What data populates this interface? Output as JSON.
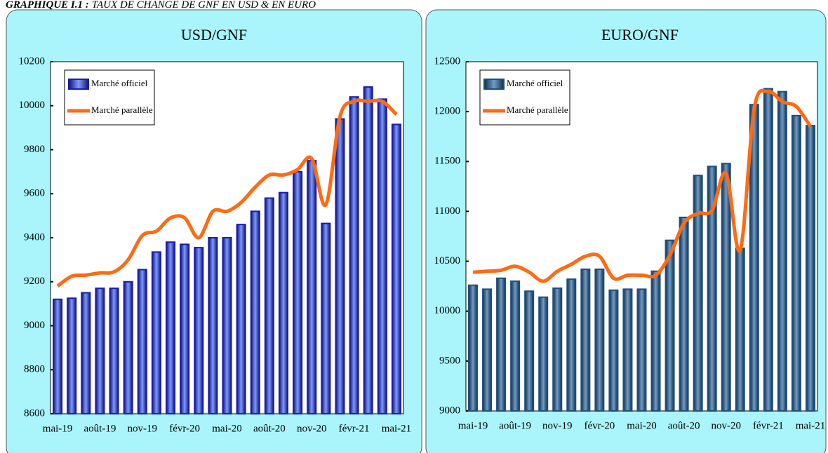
{
  "header": {
    "label": "GRAPHIQUE I.1 :",
    "title": "TAUX DE CHANGE DE GNF EN USD & EN EURO"
  },
  "chart_data": [
    {
      "type": "bar",
      "title": "USD/GNF",
      "categories": [
        "mai-19",
        null,
        null,
        "août-19",
        null,
        null,
        "nov-19",
        null,
        null,
        "févr-20",
        null,
        null,
        "mai-20",
        null,
        null,
        "août-20",
        null,
        null,
        "nov-20",
        null,
        null,
        "févr-21",
        null,
        null,
        "mai-21"
      ],
      "series": [
        {
          "name": "Marché officiel",
          "type": "bar",
          "color": "#1c1ca8",
          "values": [
            9120,
            9125,
            9150,
            9170,
            9170,
            9200,
            9255,
            9335,
            9380,
            9370,
            9355,
            9400,
            9400,
            9460,
            9520,
            9580,
            9605,
            9700,
            9750,
            9465,
            9940,
            10040,
            10085,
            10030,
            9915
          ]
        },
        {
          "name": "Marché parallèle",
          "type": "line",
          "color": "#ff6a13",
          "values": [
            9180,
            9225,
            9230,
            9240,
            9245,
            9300,
            9410,
            9430,
            9490,
            9490,
            9400,
            9520,
            9520,
            9560,
            9630,
            9685,
            9685,
            9710,
            9760,
            9550,
            9950,
            10020,
            10020,
            10020,
            9960
          ]
        }
      ],
      "ylim": [
        8600,
        10200
      ],
      "yticks": [
        8600,
        8800,
        9000,
        9200,
        9400,
        9600,
        9800,
        10000,
        10200
      ],
      "legend": "upper left"
    },
    {
      "type": "bar",
      "title": "EURO/GNF",
      "categories": [
        "mai-19",
        null,
        null,
        "août-19",
        null,
        null,
        "nov-19",
        null,
        null,
        "févr-20",
        null,
        null,
        "mai-20",
        null,
        null,
        "août-20",
        null,
        null,
        "nov-20",
        null,
        null,
        "févr-21",
        null,
        null,
        "mai-21"
      ],
      "series": [
        {
          "name": "Marché officiel",
          "type": "bar",
          "color": "#1f4e79",
          "values": [
            10260,
            10220,
            10330,
            10300,
            10200,
            10140,
            10230,
            10320,
            10420,
            10420,
            10210,
            10220,
            10220,
            10400,
            10710,
            10940,
            11360,
            11450,
            11480,
            10630,
            12070,
            12230,
            12200,
            11960,
            11860
          ]
        },
        {
          "name": "Marché parallèle",
          "type": "line",
          "color": "#ff6a13",
          "values": [
            10390,
            10400,
            10410,
            10450,
            10390,
            10300,
            10400,
            10470,
            10550,
            10550,
            10330,
            10360,
            10360,
            10360,
            10560,
            10880,
            10980,
            11010,
            11380,
            10610,
            12030,
            12200,
            12100,
            12050,
            11850
          ]
        }
      ],
      "ylim": [
        9000,
        12500
      ],
      "yticks": [
        9000,
        9500,
        10000,
        10500,
        11000,
        11500,
        12000,
        12500
      ],
      "legend": "upper left"
    }
  ]
}
